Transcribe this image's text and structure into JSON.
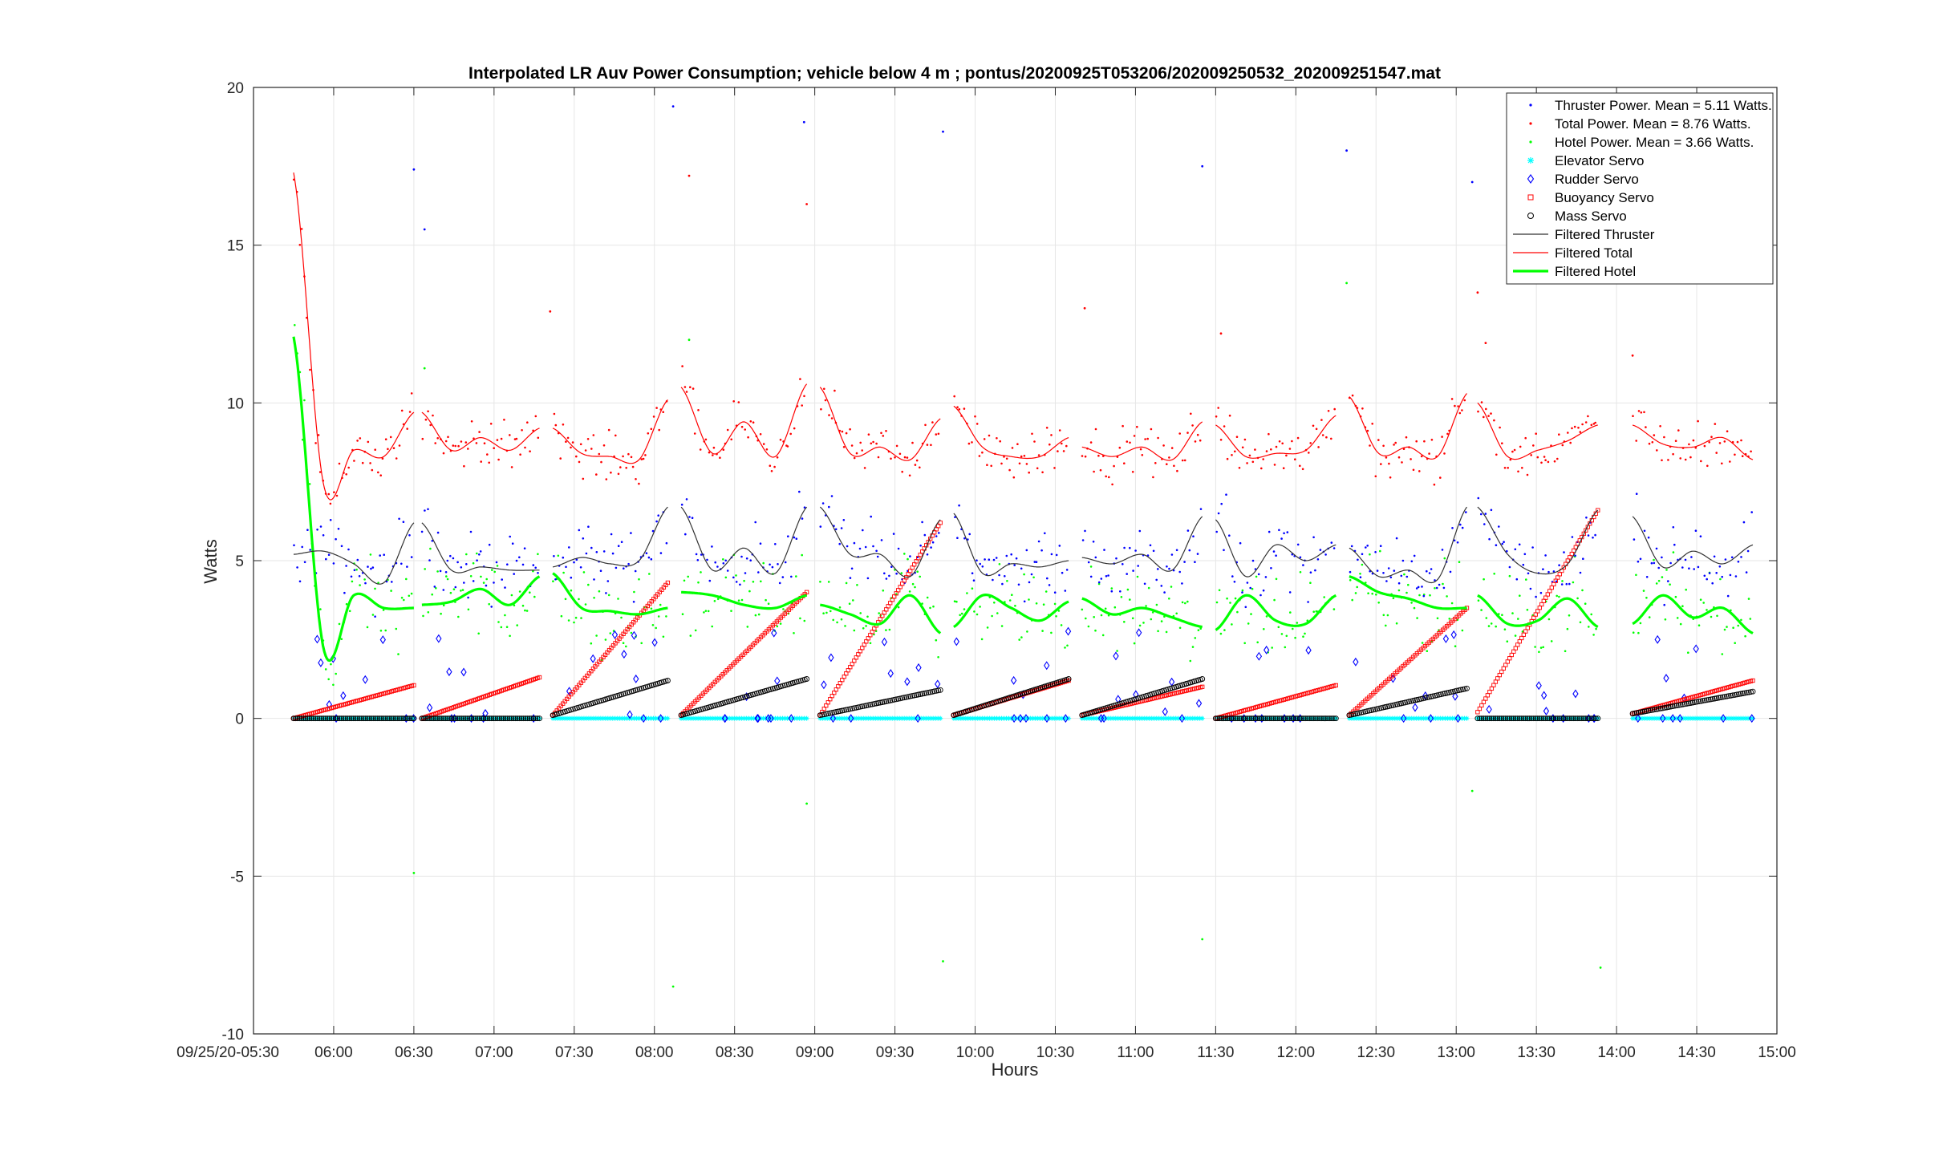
{
  "chart_data": {
    "type": "scatter",
    "title": "Interpolated LR Auv Power Consumption; vehicle below 4 m ; pontus/20200925T053206/202009250532_202009251547.mat",
    "xlabel": "Hours",
    "ylabel": "Watts",
    "xlim": [
      "05:30",
      "15:00"
    ],
    "ylim": [
      -10,
      20
    ],
    "grid": true,
    "legend_position": "top-right",
    "x_ticks": [
      {
        "t": 5.5,
        "label": "09/25/20-05:30"
      },
      {
        "t": 6.0,
        "label": "06:00"
      },
      {
        "t": 6.5,
        "label": "06:30"
      },
      {
        "t": 7.0,
        "label": "07:00"
      },
      {
        "t": 7.5,
        "label": "07:30"
      },
      {
        "t": 8.0,
        "label": "08:00"
      },
      {
        "t": 8.5,
        "label": "08:30"
      },
      {
        "t": 9.0,
        "label": "09:00"
      },
      {
        "t": 9.5,
        "label": "09:30"
      },
      {
        "t": 10.0,
        "label": "10:00"
      },
      {
        "t": 10.5,
        "label": "10:30"
      },
      {
        "t": 11.0,
        "label": "11:00"
      },
      {
        "t": 11.5,
        "label": "11:30"
      },
      {
        "t": 12.0,
        "label": "12:00"
      },
      {
        "t": 12.5,
        "label": "12:30"
      },
      {
        "t": 13.0,
        "label": "13:00"
      },
      {
        "t": 13.5,
        "label": "13:30"
      },
      {
        "t": 14.0,
        "label": "14:00"
      },
      {
        "t": 14.5,
        "label": "14:30"
      },
      {
        "t": 15.0,
        "label": "15:00"
      }
    ],
    "y_ticks": [
      -10,
      -5,
      0,
      5,
      10,
      15,
      20
    ],
    "segments": [
      {
        "start": "05:45",
        "end": "06:30",
        "thruster": [
          5.2,
          5.3,
          4.9,
          4.3,
          6.2
        ],
        "total": [
          17.3,
          7.4,
          8.5,
          8.3,
          9.7
        ],
        "hotel": [
          12.1,
          2.2,
          3.9,
          3.5,
          3.5
        ],
        "buoyancy": [
          0.0,
          1.05
        ],
        "mass": [
          0.0,
          0.0
        ]
      },
      {
        "start": "06:33",
        "end": "07:17",
        "thruster": [
          6.2,
          4.7,
          4.8,
          4.7,
          4.7
        ],
        "total": [
          9.7,
          8.5,
          8.9,
          8.5,
          9.2
        ],
        "hotel": [
          3.6,
          3.7,
          4.1,
          3.6,
          4.5
        ],
        "buoyancy": [
          0.0,
          1.3
        ],
        "mass": [
          0.0,
          0.0
        ]
      },
      {
        "start": "07:22",
        "end": "08:05",
        "thruster": [
          4.8,
          5.1,
          4.9,
          5.0,
          6.7
        ],
        "total": [
          9.2,
          8.4,
          8.3,
          8.2,
          10.1
        ],
        "hotel": [
          4.6,
          3.5,
          3.4,
          3.3,
          3.5
        ],
        "buoyancy": [
          0.1,
          4.3
        ],
        "mass": [
          0.1,
          1.2
        ]
      },
      {
        "start": "08:10",
        "end": "08:57",
        "thruster": [
          6.7,
          4.7,
          5.4,
          4.6,
          6.7
        ],
        "total": [
          10.5,
          8.4,
          9.4,
          8.3,
          10.6
        ],
        "hotel": [
          4.0,
          3.9,
          3.6,
          3.5,
          3.9
        ],
        "buoyancy": [
          0.1,
          4.0
        ],
        "mass": [
          0.1,
          1.25
        ]
      },
      {
        "start": "09:02",
        "end": "09:47",
        "thruster": [
          6.7,
          5.2,
          5.2,
          4.5,
          6.3
        ],
        "total": [
          10.5,
          8.4,
          8.6,
          8.2,
          9.5
        ],
        "hotel": [
          3.6,
          3.3,
          3.0,
          3.9,
          2.7
        ],
        "buoyancy": [
          0.1,
          6.2
        ],
        "mass": [
          0.1,
          0.9
        ]
      },
      {
        "start": "09:52",
        "end": "10:35",
        "thruster": [
          6.5,
          4.6,
          4.9,
          4.8,
          5.0
        ],
        "total": [
          9.9,
          8.6,
          8.3,
          8.3,
          8.9
        ],
        "hotel": [
          2.9,
          3.9,
          3.5,
          3.1,
          3.7
        ],
        "buoyancy": [
          0.1,
          1.2
        ],
        "mass": [
          0.1,
          1.25
        ]
      },
      {
        "start": "10:40",
        "end": "11:25",
        "thruster": [
          5.1,
          4.9,
          5.2,
          4.7,
          6.4
        ],
        "total": [
          8.6,
          8.3,
          8.6,
          8.2,
          9.4
        ],
        "hotel": [
          3.8,
          3.3,
          3.5,
          3.2,
          2.9
        ],
        "buoyancy": [
          0.1,
          1.0
        ],
        "mass": [
          0.1,
          1.25
        ]
      },
      {
        "start": "11:30",
        "end": "12:15",
        "thruster": [
          6.3,
          4.5,
          5.5,
          5.0,
          5.5
        ],
        "total": [
          9.3,
          8.3,
          8.4,
          8.5,
          9.6
        ],
        "hotel": [
          2.8,
          3.9,
          3.1,
          3.0,
          3.9
        ],
        "buoyancy": [
          0.0,
          1.05
        ],
        "mass": [
          0.0,
          0.0
        ]
      },
      {
        "start": "12:20",
        "end": "13:04",
        "thruster": [
          5.4,
          4.5,
          4.7,
          4.4,
          6.7
        ],
        "total": [
          10.2,
          8.4,
          8.6,
          8.3,
          10.3
        ],
        "hotel": [
          4.5,
          4.0,
          3.8,
          3.5,
          3.5
        ],
        "buoyancy": [
          0.1,
          3.5
        ],
        "mass": [
          0.1,
          0.95
        ]
      },
      {
        "start": "13:08",
        "end": "13:53",
        "thruster": [
          6.7,
          5.2,
          4.6,
          4.9,
          6.6
        ],
        "total": [
          10.0,
          8.3,
          8.5,
          8.8,
          9.3
        ],
        "hotel": [
          3.9,
          3.0,
          3.1,
          3.8,
          2.9
        ],
        "buoyancy": [
          0.2,
          6.6
        ],
        "mass": [
          0.0,
          0.0
        ]
      },
      {
        "start": "14:06",
        "end": "14:51",
        "thruster": [
          6.4,
          4.8,
          5.3,
          4.9,
          5.5
        ],
        "total": [
          9.3,
          8.7,
          8.6,
          8.9,
          8.2
        ],
        "hotel": [
          3.0,
          3.9,
          3.2,
          3.5,
          2.7
        ],
        "buoyancy": [
          0.15,
          1.2
        ],
        "mass": [
          0.15,
          0.85
        ]
      }
    ],
    "series": [
      {
        "key": "thruster",
        "legend": "Thruster Power. Mean = 5.11 Watts.",
        "kind": "dots",
        "color": "#0000ff",
        "mean": 5.11
      },
      {
        "key": "total",
        "legend": "Total Power. Mean = 8.76 Watts.",
        "kind": "dots",
        "color": "#ff0000",
        "mean": 8.76
      },
      {
        "key": "hotel",
        "legend": "Hotel Power. Mean = 3.66 Watts.",
        "kind": "dots",
        "color": "#00ff00",
        "mean": 3.66
      },
      {
        "key": "elevator",
        "legend": "Elevator Servo",
        "kind": "star",
        "color": "#00ffff"
      },
      {
        "key": "rudder",
        "legend": "Rudder Servo",
        "kind": "diamond",
        "color": "#0000ff"
      },
      {
        "key": "buoyancy",
        "legend": "Buoyancy Servo",
        "kind": "square",
        "color": "#ff0000"
      },
      {
        "key": "mass",
        "legend": "Mass Servo",
        "kind": "circle",
        "color": "#000000"
      },
      {
        "key": "filt_thruster",
        "legend": "Filtered Thruster",
        "kind": "line",
        "color": "#000000"
      },
      {
        "key": "filt_total",
        "legend": "Filtered Total",
        "kind": "line",
        "color": "#ff0000"
      },
      {
        "key": "filt_hotel",
        "legend": "Filtered Hotel",
        "kind": "thickline",
        "color": "#00ff00"
      }
    ],
    "outliers": [
      {
        "time": "06:30",
        "value": 17.4,
        "series": "thruster"
      },
      {
        "time": "06:34",
        "value": 15.5,
        "series": "thruster"
      },
      {
        "time": "08:07",
        "value": 19.4,
        "series": "thruster"
      },
      {
        "time": "08:56",
        "value": 18.9,
        "series": "thruster"
      },
      {
        "time": "09:48",
        "value": 18.6,
        "series": "thruster"
      },
      {
        "time": "11:25",
        "value": 17.5,
        "series": "thruster"
      },
      {
        "time": "12:19",
        "value": 18.0,
        "series": "thruster"
      },
      {
        "time": "13:06",
        "value": 17.0,
        "series": "thruster"
      },
      {
        "time": "08:13",
        "value": 17.2,
        "series": "total"
      },
      {
        "time": "08:57",
        "value": 16.3,
        "series": "total"
      },
      {
        "time": "07:21",
        "value": 12.9,
        "series": "total"
      },
      {
        "time": "13:08",
        "value": 13.5,
        "series": "total"
      },
      {
        "time": "10:41",
        "value": 13.0,
        "series": "total"
      },
      {
        "time": "11:32",
        "value": 12.2,
        "series": "total"
      },
      {
        "time": "14:06",
        "value": 11.5,
        "series": "total"
      },
      {
        "time": "13:11",
        "value": 11.9,
        "series": "total"
      },
      {
        "time": "06:30",
        "value": -4.9,
        "series": "hotel"
      },
      {
        "time": "08:07",
        "value": -8.5,
        "series": "hotel"
      },
      {
        "time": "08:57",
        "value": -2.7,
        "series": "hotel"
      },
      {
        "time": "09:48",
        "value": -7.7,
        "series": "hotel"
      },
      {
        "time": "11:25",
        "value": -7.0,
        "series": "hotel"
      },
      {
        "time": "13:06",
        "value": -2.3,
        "series": "hotel"
      },
      {
        "time": "13:54",
        "value": -7.9,
        "series": "hotel"
      },
      {
        "time": "06:34",
        "value": 11.1,
        "series": "hotel"
      },
      {
        "time": "08:13",
        "value": 12.0,
        "series": "hotel"
      },
      {
        "time": "12:19",
        "value": 13.8,
        "series": "hotel"
      }
    ]
  }
}
